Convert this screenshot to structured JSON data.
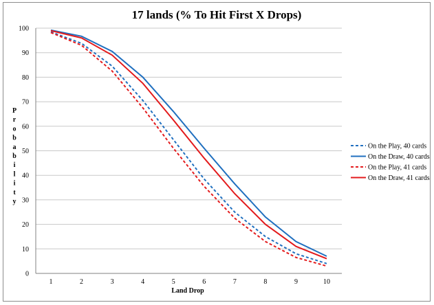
{
  "chart_data": {
    "type": "line",
    "title": "17 lands (% To Hit First X Drops)",
    "xlabel": "Land Drop",
    "ylabel": "Probability",
    "x": [
      1,
      2,
      3,
      4,
      5,
      6,
      7,
      8,
      9,
      10
    ],
    "xlim": [
      1,
      10
    ],
    "ylim": [
      0,
      100
    ],
    "yticks": [
      0,
      10,
      20,
      30,
      40,
      50,
      60,
      70,
      80,
      90,
      100
    ],
    "grid": true,
    "legend_position": "right",
    "series": [
      {
        "name": "On the Play, 40 cards",
        "color": "#1f6fbf",
        "dashed": true,
        "values": [
          98.5,
          93.8,
          84.5,
          70.5,
          54.5,
          38.5,
          25.0,
          15.0,
          8.0,
          4.0
        ]
      },
      {
        "name": "On the Draw, 40 cards",
        "color": "#1f6fbf",
        "dashed": false,
        "values": [
          99.2,
          96.7,
          90.5,
          80.0,
          66.0,
          51.0,
          36.5,
          23.0,
          13.0,
          7.0
        ]
      },
      {
        "name": "On the Play, 41 cards",
        "color": "#e31a1c",
        "dashed": true,
        "values": [
          98.2,
          93.0,
          82.5,
          67.5,
          51.0,
          35.5,
          22.5,
          13.0,
          6.5,
          3.0
        ]
      },
      {
        "name": "On the Draw, 41 cards",
        "color": "#e31a1c",
        "dashed": false,
        "values": [
          99.0,
          96.0,
          89.0,
          77.5,
          62.5,
          47.0,
          32.5,
          20.0,
          11.0,
          6.0
        ]
      }
    ]
  }
}
